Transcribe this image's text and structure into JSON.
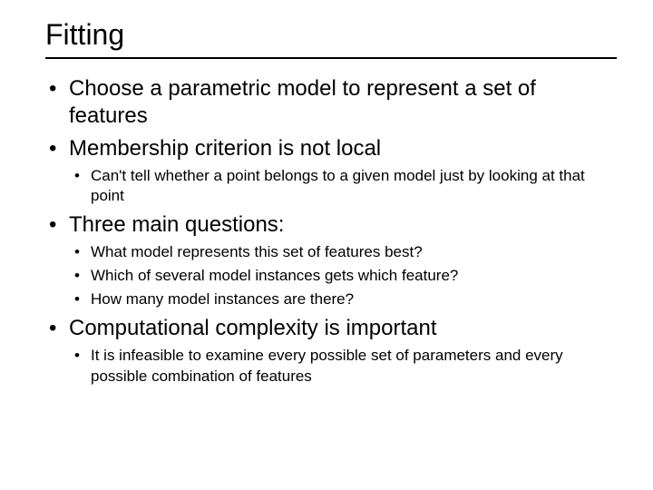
{
  "slide": {
    "title": "Fitting",
    "bullets": [
      {
        "text": "Choose a parametric model to represent a set of features",
        "sub": []
      },
      {
        "text": "Membership criterion is not local",
        "sub": [
          "Can't tell whether a point belongs to a given model just by looking at that point"
        ]
      },
      {
        "text": "Three main questions:",
        "sub": [
          "What model represents this set of features best?",
          "Which of several model instances gets which feature?",
          "How many model instances are there?"
        ]
      },
      {
        "text": "Computational complexity is important",
        "sub": [
          "It is infeasible to examine every possible set of parameters and every possible combination of features"
        ]
      }
    ]
  },
  "colors": {
    "background": "#ffffff",
    "text": "#000000",
    "rule": "#000000"
  },
  "typography": {
    "title_fontsize": 32,
    "level1_fontsize": 24,
    "level2_fontsize": 17,
    "font_family": "Arial"
  }
}
